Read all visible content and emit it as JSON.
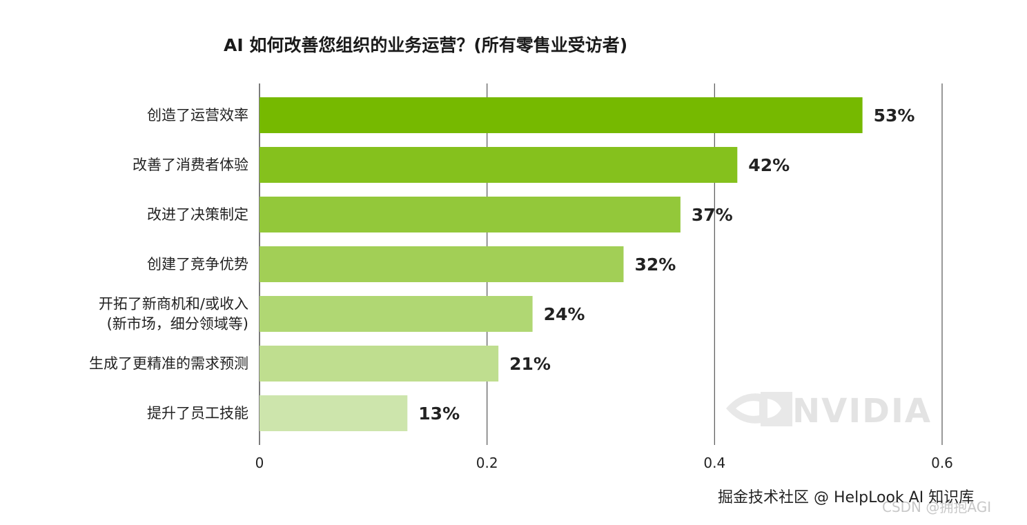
{
  "chart_data": {
    "type": "bar",
    "orientation": "horizontal",
    "title": "AI 如何改善您组织的业务运营？(所有零售业受访者)",
    "categories": [
      [
        "创造了运营效率"
      ],
      [
        "改善了消费者体验"
      ],
      [
        "改进了决策制定"
      ],
      [
        "创建了竞争优势"
      ],
      [
        "开拓了新商机和/或收入",
        "(新市场，细分领域等)"
      ],
      [
        "生成了更精准的需求预测"
      ],
      [
        "提升了员工技能"
      ]
    ],
    "values": [
      0.53,
      0.42,
      0.37,
      0.32,
      0.24,
      0.21,
      0.13
    ],
    "value_labels": [
      "53%",
      "42%",
      "37%",
      "32%",
      "24%",
      "21%",
      "13%"
    ],
    "bar_colors": [
      "#76b900",
      "#85c11d",
      "#93c83a",
      "#a2cf56",
      "#b0d773",
      "#bfde8f",
      "#cde5ac"
    ],
    "xlim": [
      0,
      0.6
    ],
    "x_ticks": [
      0,
      0.2,
      0.4,
      0.6
    ],
    "x_tick_labels": [
      "0",
      "0.2",
      "0.4",
      "0.6"
    ],
    "grid": true
  },
  "watermark": {
    "text": "NVIDIA",
    "icon": "nvidia-eye-logo"
  },
  "footer": {
    "primary": "掘金技术社区 @ HelpLook AI 知识库",
    "secondary": "CSDN @拥抱AGI"
  }
}
